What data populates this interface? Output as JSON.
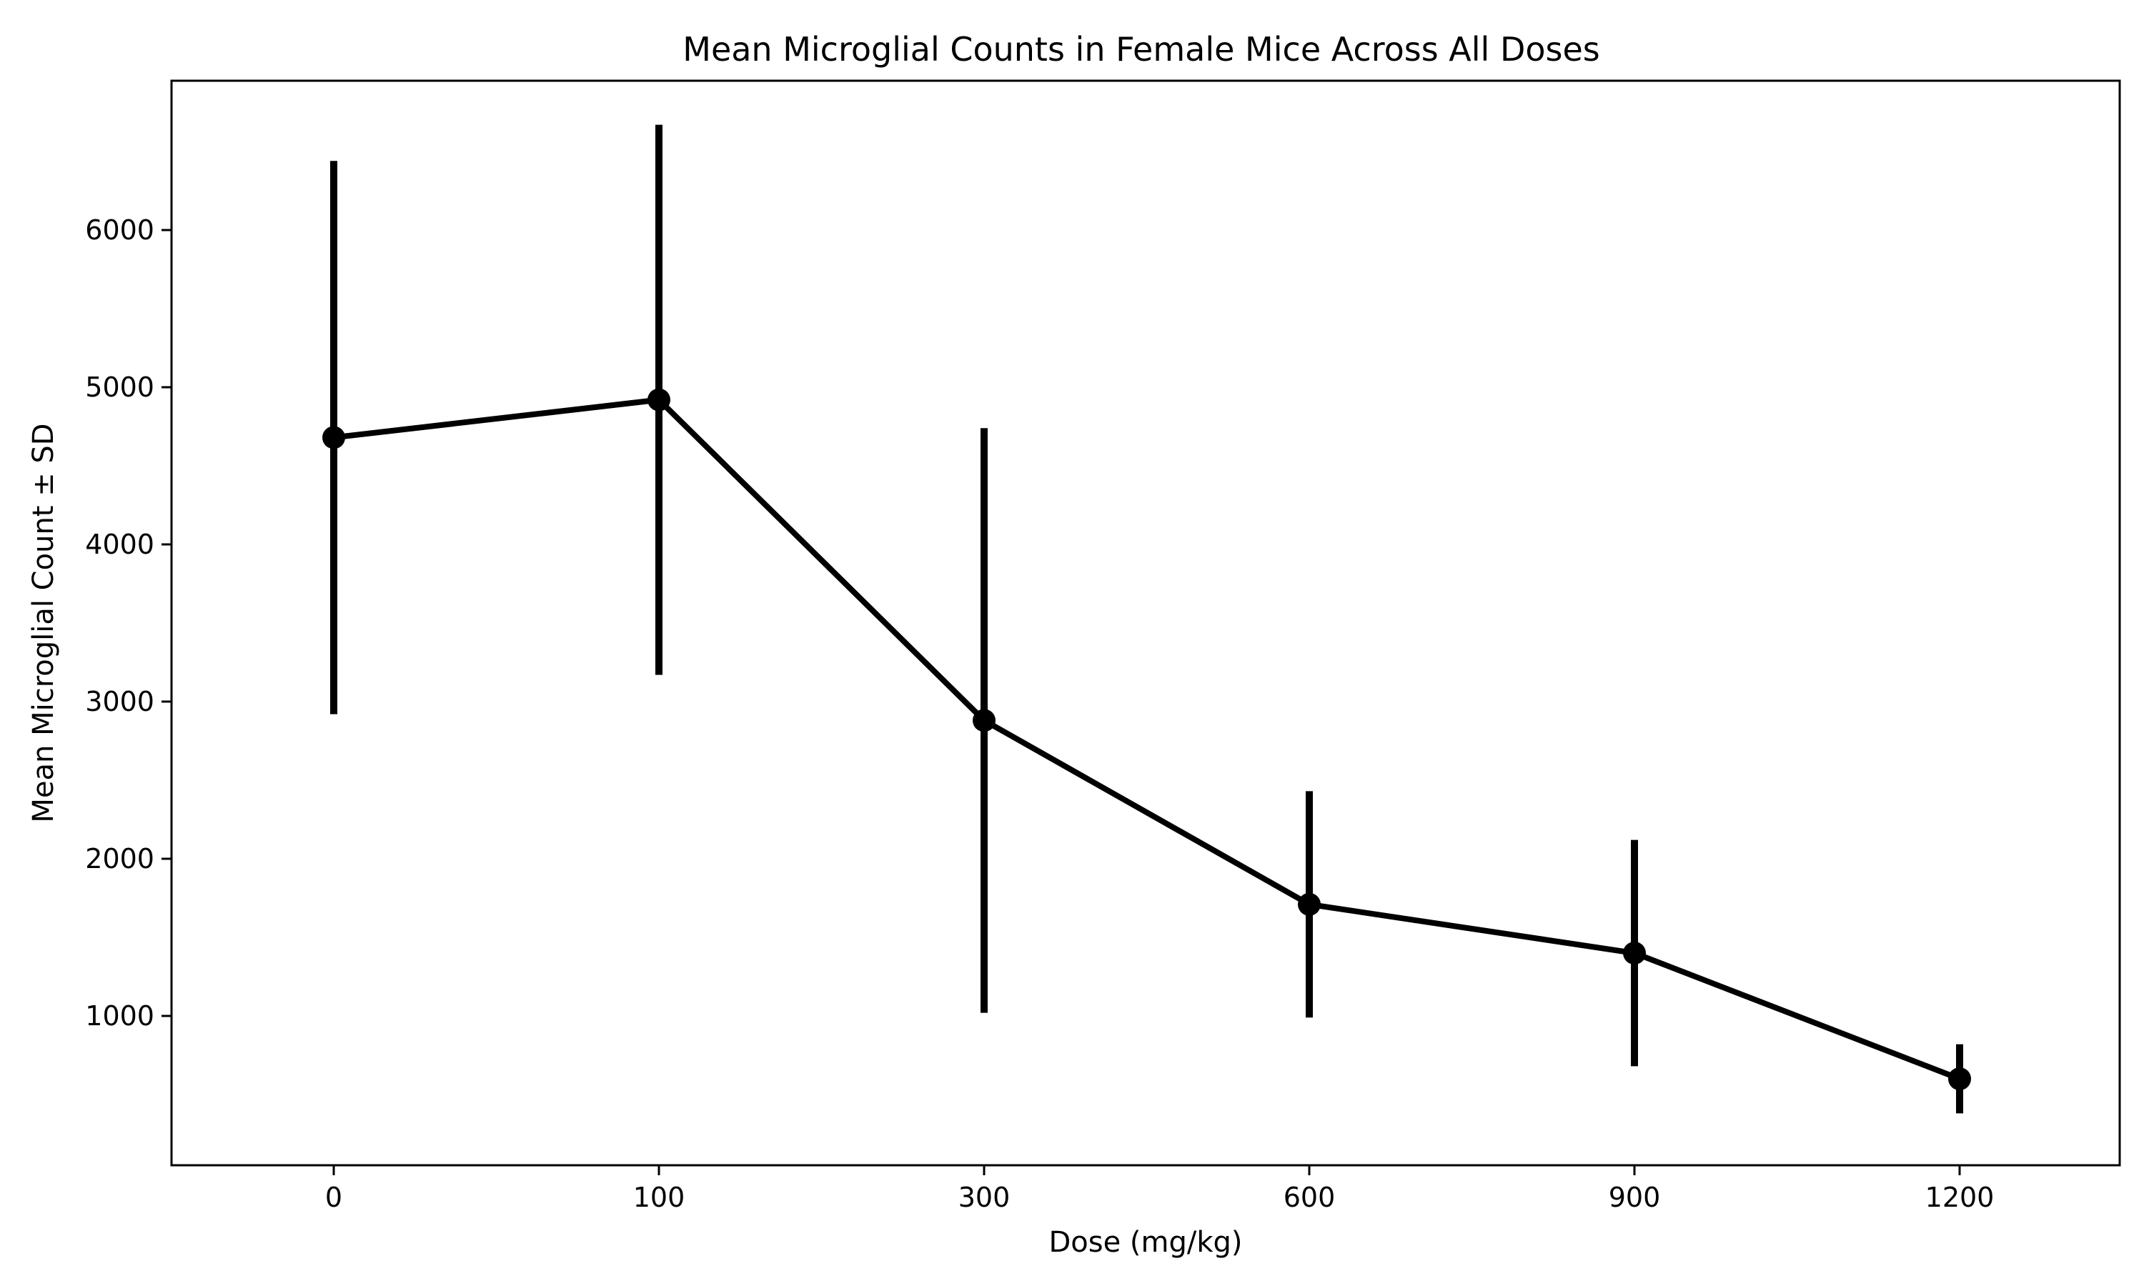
{
  "chart_data": {
    "type": "line",
    "title": "Mean Microglial Counts in Female Mice Across All Doses",
    "xlabel": "Dose (mg/kg)",
    "ylabel": "Mean Microglial Count ± SD",
    "categories": [
      "0",
      "100",
      "300",
      "600",
      "900",
      "1200"
    ],
    "series": [
      {
        "values": [
          4680,
          4920,
          2880,
          1710,
          1400,
          600
        ],
        "error": [
          1760,
          1750,
          1860,
          720,
          720,
          220
        ],
        "color": "#000000"
      }
    ],
    "yticks": [
      1000,
      2000,
      3000,
      4000,
      5000,
      6000
    ],
    "ylim": [
      50,
      6950
    ],
    "grid": false,
    "legend": "none",
    "error_bars": "± SD"
  }
}
